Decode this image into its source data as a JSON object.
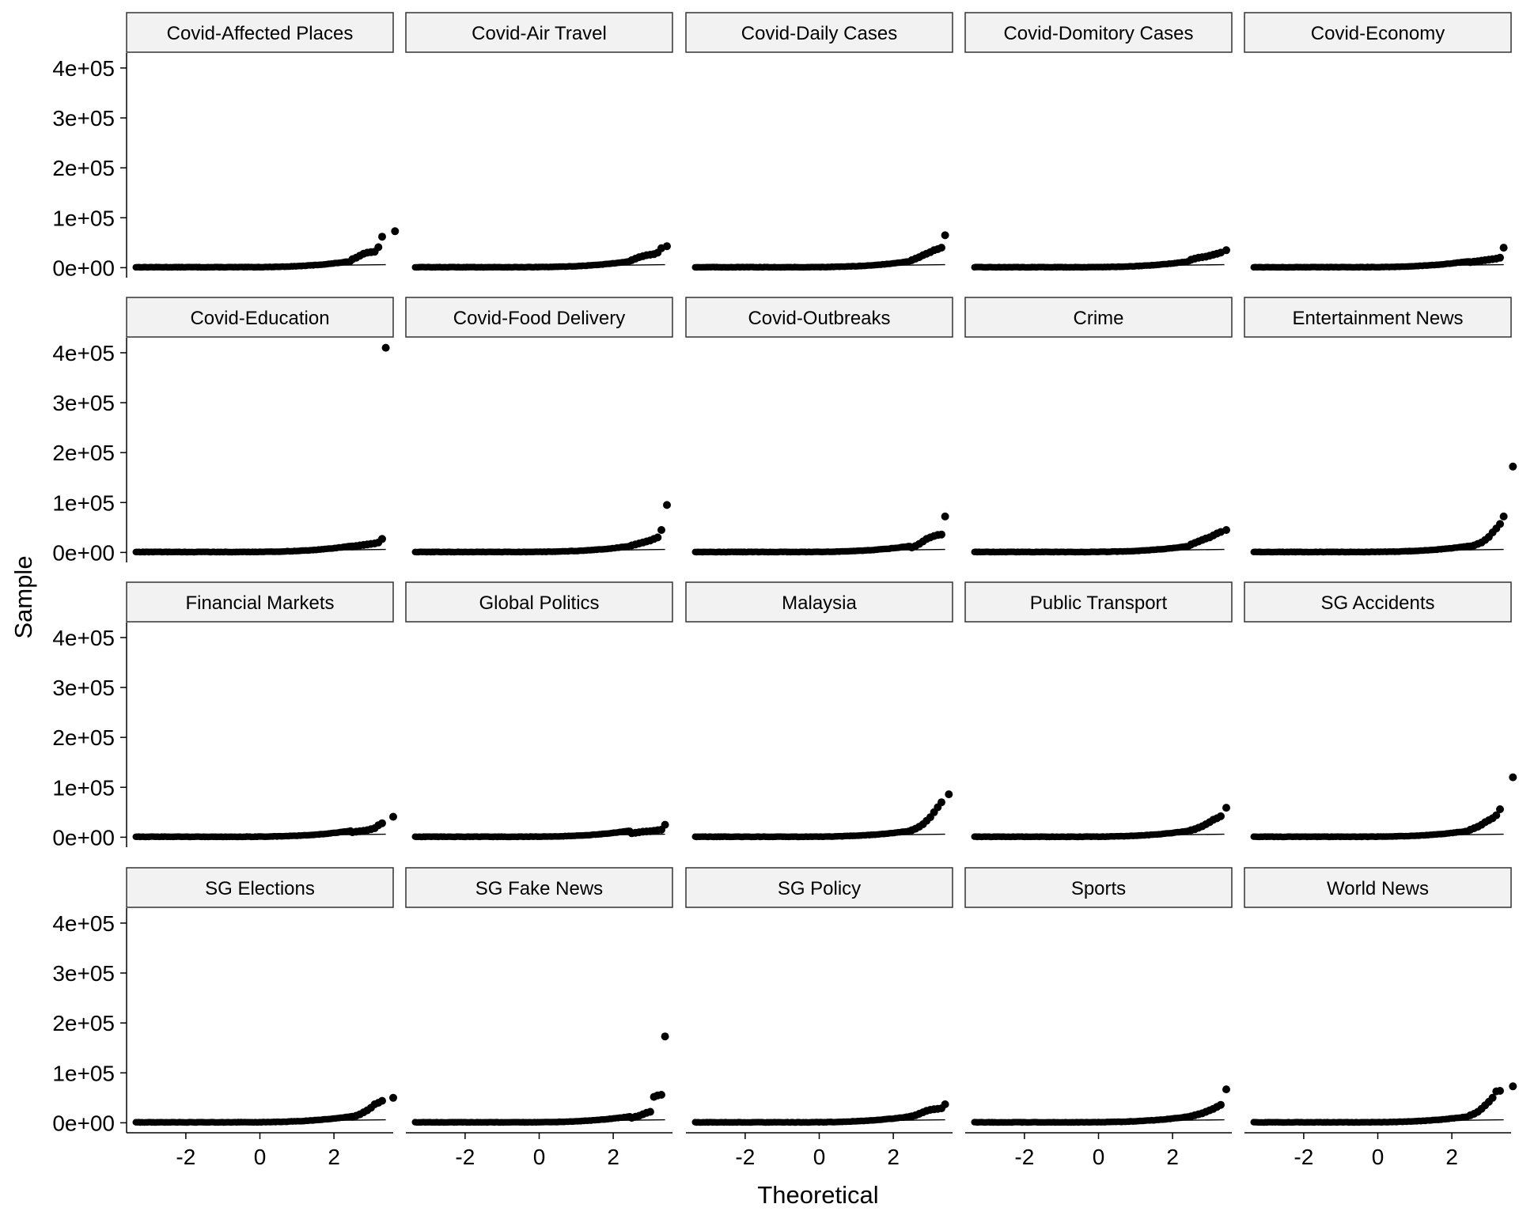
{
  "chart_data": {
    "type": "scatter",
    "subtype": "faceted normal Q-Q plot",
    "xlabel": "Theoretical",
    "ylabel": "Sample",
    "xlim": [
      -3.6,
      3.6
    ],
    "ylim": [
      -20000,
      430000
    ],
    "x_ticks": [
      -2,
      0,
      2
    ],
    "x_tick_labels": [
      "-2",
      "0",
      "2"
    ],
    "y_ticks": [
      0,
      100000,
      200000,
      300000,
      400000
    ],
    "y_tick_labels": [
      "0e+00",
      "1e+05",
      "2e+05",
      "3e+05",
      "4e+05"
    ],
    "grid": false,
    "layout": {
      "rows": 4,
      "cols": 5
    },
    "reference_line": {
      "x_start": -3.4,
      "x_end": 3.4,
      "y_start": 0,
      "y_end": 6000
    },
    "colors": {
      "points": "#000000",
      "strip_fill": "#f2f2f2",
      "strip_border": "#333333",
      "axis": "#000000"
    },
    "panels": [
      {
        "name": "Covid-Affected Places",
        "tail": [
          [
            2.5,
            17000
          ],
          [
            2.6,
            20000
          ],
          [
            2.7,
            24000
          ],
          [
            2.8,
            28000
          ],
          [
            2.9,
            30000
          ],
          [
            3.0,
            31000
          ],
          [
            3.1,
            32000
          ],
          [
            3.2,
            41000
          ],
          [
            3.3,
            62000
          ],
          [
            3.65,
            73000
          ]
        ]
      },
      {
        "name": "Covid-Air Travel",
        "tail": [
          [
            2.5,
            15000
          ],
          [
            2.6,
            18000
          ],
          [
            2.7,
            21000
          ],
          [
            2.8,
            23000
          ],
          [
            2.9,
            25000
          ],
          [
            3.0,
            26000
          ],
          [
            3.1,
            27000
          ],
          [
            3.2,
            30000
          ],
          [
            3.3,
            39000
          ],
          [
            3.45,
            43000
          ]
        ]
      },
      {
        "name": "Covid-Daily Cases",
        "tail": [
          [
            2.5,
            15000
          ],
          [
            2.6,
            18000
          ],
          [
            2.7,
            21000
          ],
          [
            2.8,
            25000
          ],
          [
            2.9,
            28000
          ],
          [
            3.0,
            31000
          ],
          [
            3.1,
            35000
          ],
          [
            3.2,
            37000
          ],
          [
            3.3,
            40000
          ],
          [
            3.4,
            65000
          ]
        ]
      },
      {
        "name": "Covid-Domitory Cases",
        "tail": [
          [
            2.5,
            16000
          ],
          [
            2.6,
            18000
          ],
          [
            2.7,
            20000
          ],
          [
            2.8,
            21000
          ],
          [
            2.9,
            22000
          ],
          [
            3.0,
            24000
          ],
          [
            3.1,
            26000
          ],
          [
            3.2,
            28000
          ],
          [
            3.3,
            30000
          ],
          [
            3.45,
            35000
          ]
        ]
      },
      {
        "name": "Covid-Economy",
        "tail": [
          [
            2.5,
            11000
          ],
          [
            2.6,
            12000
          ],
          [
            2.7,
            13000
          ],
          [
            2.8,
            14000
          ],
          [
            2.9,
            15000
          ],
          [
            3.0,
            16000
          ],
          [
            3.1,
            17000
          ],
          [
            3.2,
            18000
          ],
          [
            3.3,
            20000
          ],
          [
            3.4,
            40000
          ]
        ]
      },
      {
        "name": "Covid-Education",
        "tail": [
          [
            2.5,
            12000
          ],
          [
            2.6,
            13000
          ],
          [
            2.7,
            14000
          ],
          [
            2.8,
            15000
          ],
          [
            2.9,
            16000
          ],
          [
            3.0,
            17000
          ],
          [
            3.1,
            18000
          ],
          [
            3.2,
            20000
          ],
          [
            3.3,
            27000
          ],
          [
            3.4,
            410000
          ]
        ]
      },
      {
        "name": "Covid-Food Delivery",
        "tail": [
          [
            2.5,
            14000
          ],
          [
            2.6,
            16000
          ],
          [
            2.7,
            18000
          ],
          [
            2.8,
            20000
          ],
          [
            2.9,
            22000
          ],
          [
            3.0,
            24000
          ],
          [
            3.1,
            27000
          ],
          [
            3.2,
            30000
          ],
          [
            3.3,
            45000
          ],
          [
            3.45,
            95000
          ]
        ]
      },
      {
        "name": "Covid-Outbreaks",
        "tail": [
          [
            2.5,
            10000
          ],
          [
            2.6,
            13000
          ],
          [
            2.7,
            17000
          ],
          [
            2.8,
            22000
          ],
          [
            2.9,
            27000
          ],
          [
            3.0,
            30000
          ],
          [
            3.1,
            33000
          ],
          [
            3.2,
            35000
          ],
          [
            3.3,
            36000
          ],
          [
            3.4,
            72000
          ]
        ]
      },
      {
        "name": "Crime",
        "tail": [
          [
            2.5,
            16000
          ],
          [
            2.6,
            19000
          ],
          [
            2.7,
            22000
          ],
          [
            2.8,
            25000
          ],
          [
            2.9,
            28000
          ],
          [
            3.0,
            30000
          ],
          [
            3.1,
            34000
          ],
          [
            3.2,
            38000
          ],
          [
            3.3,
            41000
          ],
          [
            3.45,
            45000
          ]
        ]
      },
      {
        "name": "Entertainment News",
        "tail": [
          [
            2.5,
            12000
          ],
          [
            2.6,
            14000
          ],
          [
            2.7,
            17000
          ],
          [
            2.8,
            20000
          ],
          [
            2.9,
            25000
          ],
          [
            3.0,
            31000
          ],
          [
            3.1,
            40000
          ],
          [
            3.2,
            48000
          ],
          [
            3.3,
            57000
          ],
          [
            3.4,
            72000
          ],
          [
            3.65,
            172000
          ]
        ]
      },
      {
        "name": "Financial Markets",
        "tail": [
          [
            2.5,
            10000
          ],
          [
            2.6,
            11000
          ],
          [
            2.7,
            12000
          ],
          [
            2.8,
            13000
          ],
          [
            2.9,
            14000
          ],
          [
            3.0,
            16000
          ],
          [
            3.1,
            18000
          ],
          [
            3.2,
            24000
          ],
          [
            3.3,
            28000
          ],
          [
            3.6,
            41000
          ]
        ]
      },
      {
        "name": "Global Politics",
        "tail": [
          [
            2.5,
            8000
          ],
          [
            2.6,
            9000
          ],
          [
            2.7,
            10000
          ],
          [
            2.8,
            11000
          ],
          [
            2.9,
            11500
          ],
          [
            3.0,
            12000
          ],
          [
            3.1,
            13000
          ],
          [
            3.2,
            14000
          ],
          [
            3.3,
            15000
          ],
          [
            3.4,
            25000
          ]
        ]
      },
      {
        "name": "Malaysia",
        "tail": [
          [
            2.5,
            14000
          ],
          [
            2.6,
            17000
          ],
          [
            2.7,
            21000
          ],
          [
            2.8,
            26000
          ],
          [
            2.9,
            33000
          ],
          [
            3.0,
            40000
          ],
          [
            3.1,
            50000
          ],
          [
            3.2,
            60000
          ],
          [
            3.3,
            70000
          ],
          [
            3.5,
            86000
          ]
        ]
      },
      {
        "name": "Public Transport",
        "tail": [
          [
            2.5,
            14000
          ],
          [
            2.6,
            16000
          ],
          [
            2.7,
            19000
          ],
          [
            2.8,
            22000
          ],
          [
            2.9,
            26000
          ],
          [
            3.0,
            30000
          ],
          [
            3.1,
            35000
          ],
          [
            3.2,
            38000
          ],
          [
            3.3,
            42000
          ],
          [
            3.45,
            59000
          ]
        ]
      },
      {
        "name": "SG Accidents",
        "tail": [
          [
            2.5,
            15000
          ],
          [
            2.6,
            18000
          ],
          [
            2.7,
            21000
          ],
          [
            2.8,
            25000
          ],
          [
            2.9,
            30000
          ],
          [
            3.0,
            34000
          ],
          [
            3.1,
            38000
          ],
          [
            3.2,
            44000
          ],
          [
            3.3,
            56000
          ],
          [
            3.65,
            120000
          ]
        ]
      },
      {
        "name": "SG Elections",
        "tail": [
          [
            2.5,
            12000
          ],
          [
            2.6,
            14000
          ],
          [
            2.7,
            17000
          ],
          [
            2.8,
            21000
          ],
          [
            2.9,
            25000
          ],
          [
            3.0,
            30000
          ],
          [
            3.1,
            37000
          ],
          [
            3.2,
            40000
          ],
          [
            3.3,
            44000
          ],
          [
            3.6,
            50000
          ]
        ]
      },
      {
        "name": "SG Fake News",
        "tail": [
          [
            2.5,
            10000
          ],
          [
            2.6,
            12000
          ],
          [
            2.7,
            14000
          ],
          [
            2.8,
            17000
          ],
          [
            2.9,
            20000
          ],
          [
            3.0,
            22000
          ],
          [
            3.1,
            52000
          ],
          [
            3.2,
            55000
          ],
          [
            3.3,
            56000
          ],
          [
            3.4,
            173000
          ]
        ]
      },
      {
        "name": "SG Policy",
        "tail": [
          [
            2.5,
            13000
          ],
          [
            2.6,
            15000
          ],
          [
            2.7,
            18000
          ],
          [
            2.8,
            21000
          ],
          [
            2.9,
            24000
          ],
          [
            3.0,
            26000
          ],
          [
            3.1,
            27000
          ],
          [
            3.2,
            28000
          ],
          [
            3.3,
            29000
          ],
          [
            3.4,
            37000
          ]
        ]
      },
      {
        "name": "Sports",
        "tail": [
          [
            2.5,
            13000
          ],
          [
            2.6,
            15000
          ],
          [
            2.7,
            17000
          ],
          [
            2.8,
            19000
          ],
          [
            2.9,
            22000
          ],
          [
            3.0,
            25000
          ],
          [
            3.1,
            28000
          ],
          [
            3.2,
            32000
          ],
          [
            3.3,
            36000
          ],
          [
            3.45,
            67000
          ]
        ]
      },
      {
        "name": "World News",
        "tail": [
          [
            2.5,
            15000
          ],
          [
            2.6,
            18000
          ],
          [
            2.7,
            22000
          ],
          [
            2.8,
            28000
          ],
          [
            2.9,
            35000
          ],
          [
            3.0,
            42000
          ],
          [
            3.1,
            50000
          ],
          [
            3.2,
            63000
          ],
          [
            3.3,
            64000
          ],
          [
            3.65,
            73000
          ]
        ]
      }
    ]
  }
}
